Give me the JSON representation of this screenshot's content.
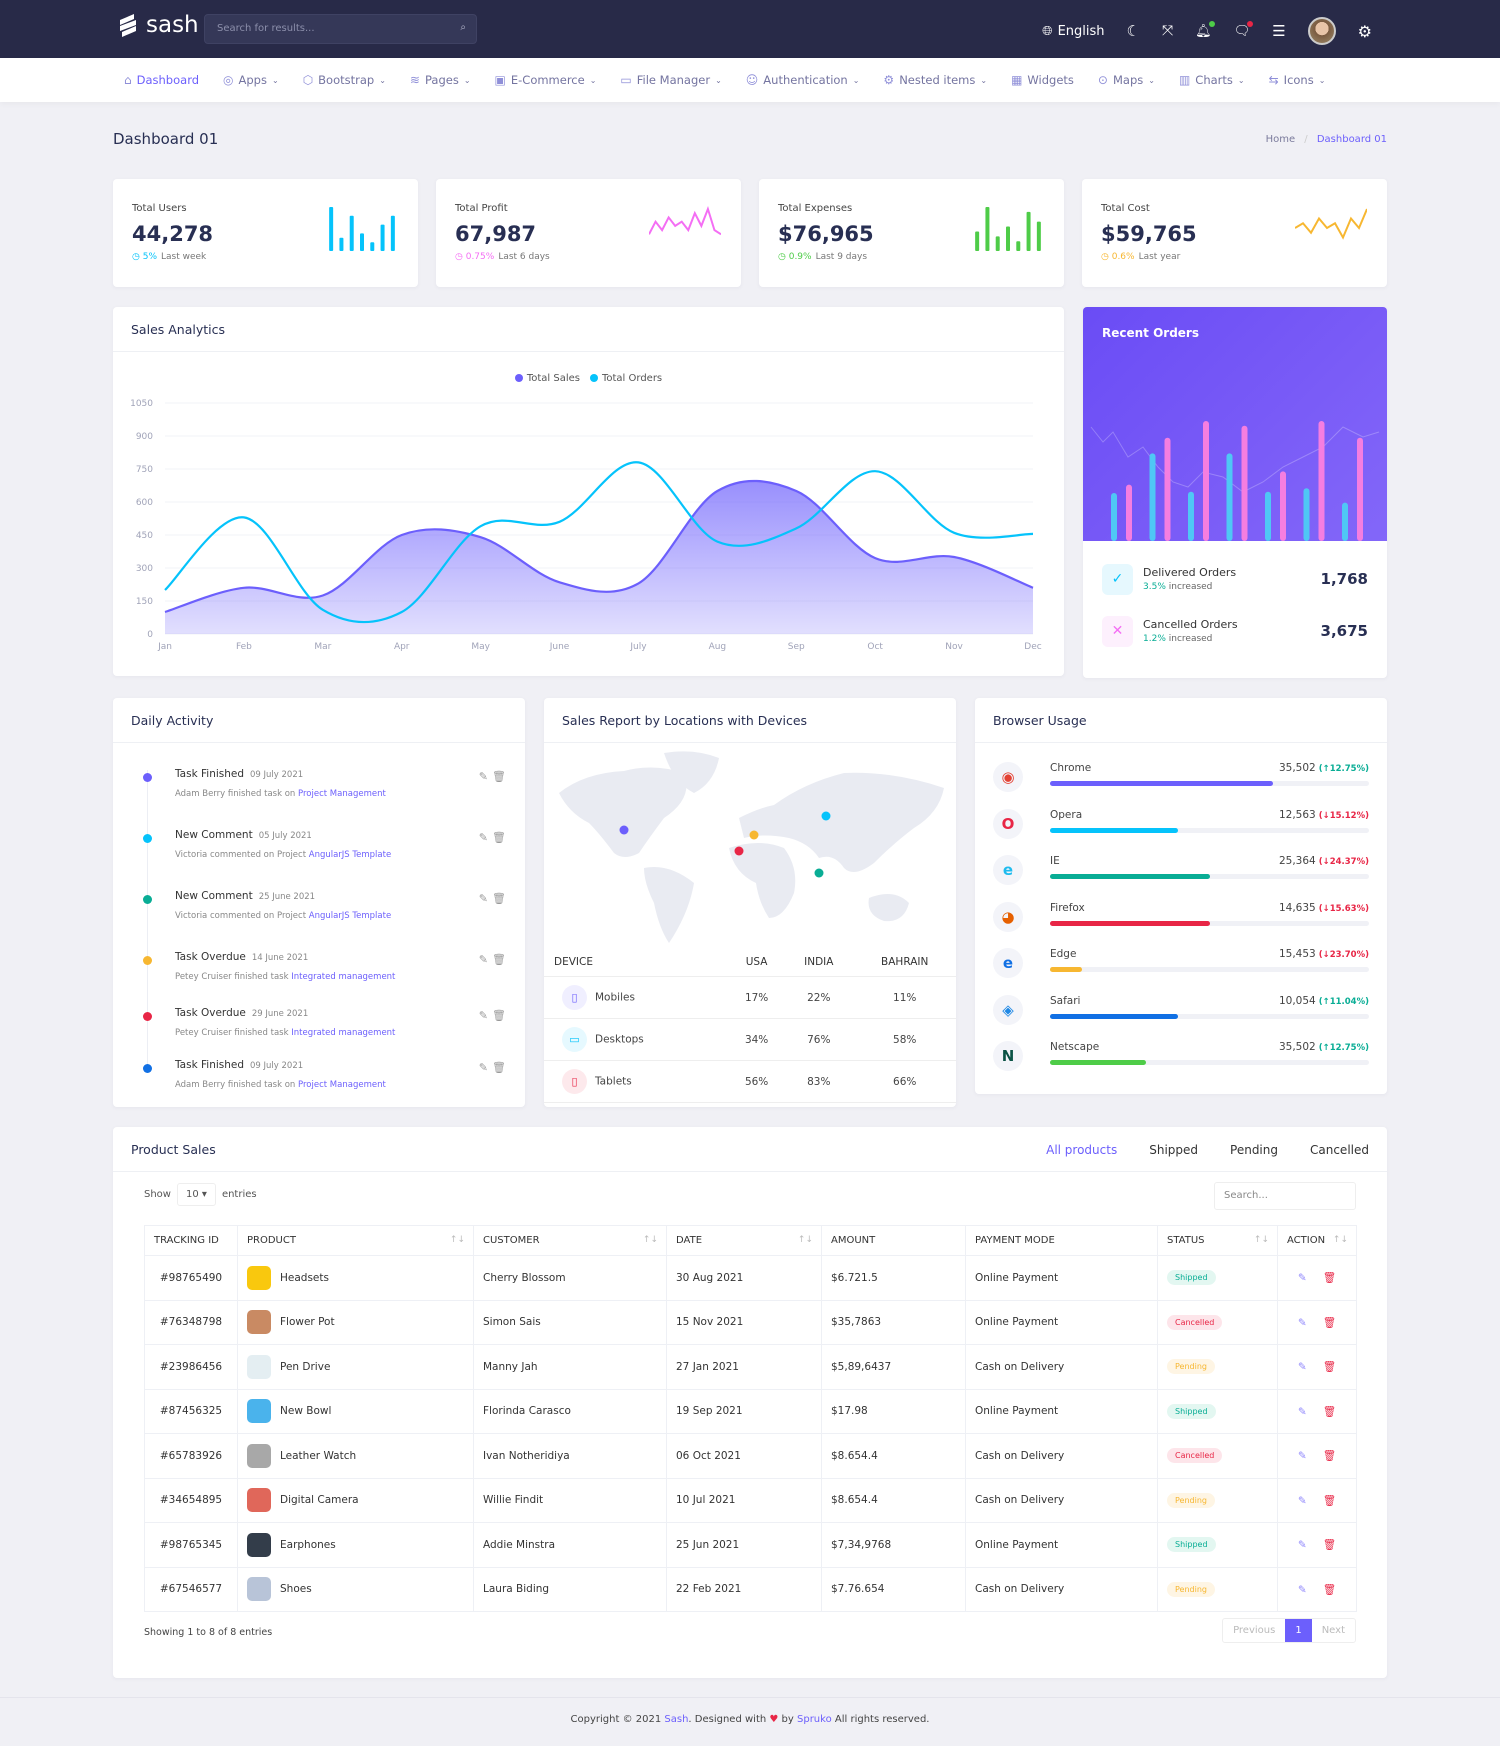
{
  "colors": {
    "primary": "#6c5ffc",
    "cyan": "#05c3fb",
    "green": "#09ad95",
    "orange": "#f7b731",
    "red": "#e82646",
    "blue": "#1170e4",
    "lime": "#4ecc48",
    "pink": "#f46ef4",
    "header": "#282a48"
  },
  "header": {
    "brand": "sash",
    "search_placeholder": "Search for results...",
    "language": "English"
  },
  "nav": [
    {
      "label": "Dashboard",
      "icon": "home-icon",
      "active": true,
      "dropdown": false
    },
    {
      "label": "Apps",
      "icon": "apps-icon",
      "dropdown": true
    },
    {
      "label": "Bootstrap",
      "icon": "package-icon",
      "dropdown": true
    },
    {
      "label": "Pages",
      "icon": "layers-icon",
      "dropdown": true
    },
    {
      "label": "E-Commerce",
      "icon": "shopping-bag-icon",
      "dropdown": true
    },
    {
      "label": "File Manager",
      "icon": "folder-icon",
      "dropdown": true
    },
    {
      "label": "Authentication",
      "icon": "users-icon",
      "dropdown": true
    },
    {
      "label": "Nested items",
      "icon": "settings-icon",
      "dropdown": true
    },
    {
      "label": "Widgets",
      "icon": "grid-icon",
      "dropdown": false
    },
    {
      "label": "Maps",
      "icon": "map-pin-icon",
      "dropdown": true
    },
    {
      "label": "Charts",
      "icon": "bar-chart-icon",
      "dropdown": true
    },
    {
      "label": "Icons",
      "icon": "shuffle-icon",
      "dropdown": true
    }
  ],
  "page": {
    "title": "Dashboard 01",
    "breadcrumb": [
      "Home",
      "Dashboard 01"
    ]
  },
  "stats": [
    {
      "label": "Total Users",
      "value": "44,278",
      "change": "5%",
      "period": "Last week",
      "color": "#05c3fb",
      "chart": "bar",
      "spark": [
        10,
        3,
        8,
        4,
        2,
        6,
        8
      ]
    },
    {
      "label": "Total Profit",
      "value": "67,987",
      "change": "0.75%",
      "period": "Last 6 days",
      "color": "#f46ef4",
      "chart": "line",
      "spark": [
        3,
        6,
        4,
        7,
        5,
        6,
        4,
        8,
        5,
        9,
        4,
        3
      ]
    },
    {
      "label": "Total Expenses",
      "value": "$76,965",
      "change": "0.9%",
      "period": "Last 9 days",
      "color": "#4ecc48",
      "chart": "bar",
      "spark": [
        4,
        9,
        3,
        5,
        2,
        8,
        6
      ]
    },
    {
      "label": "Total Cost",
      "value": "$59,765",
      "change": "0.6%",
      "period": "Last year",
      "color": "#f7b731",
      "chart": "line",
      "spark": [
        4,
        5,
        3,
        6,
        4,
        5,
        2,
        6,
        4,
        8
      ]
    }
  ],
  "sales_analytics": {
    "title": "Sales Analytics"
  },
  "chart_data": {
    "type": "area",
    "categories": [
      "Jan",
      "Feb",
      "Mar",
      "Apr",
      "May",
      "June",
      "July",
      "Aug",
      "Sep",
      "Oct",
      "Nov",
      "Dec"
    ],
    "yticks": [
      0,
      150,
      300,
      450,
      600,
      750,
      900,
      1050
    ],
    "ylim": [
      0,
      1050
    ],
    "legend_position": "top-center",
    "series": [
      {
        "name": "Total Sales",
        "color": "#6c5ffc",
        "values": [
          100,
          210,
          175,
          450,
          440,
          235,
          230,
          650,
          650,
          345,
          350,
          210
        ]
      },
      {
        "name": "Total Orders",
        "color": "#05c3fb",
        "values": [
          200,
          530,
          110,
          100,
          490,
          510,
          780,
          420,
          480,
          740,
          460,
          455
        ]
      }
    ]
  },
  "recent_orders": {
    "title": "Recent Orders",
    "bars": [
      [
        40,
        47
      ],
      [
        73,
        86
      ],
      [
        41,
        100
      ],
      [
        73,
        96
      ],
      [
        41,
        58
      ],
      [
        44,
        100
      ],
      [
        32,
        86
      ]
    ],
    "items": [
      {
        "label": "Delivered Orders",
        "change": "3.5%",
        "suffix": "increased",
        "value": "1,768",
        "icon": "check-icon"
      },
      {
        "label": "Cancelled Orders",
        "change": "1.2%",
        "suffix": "increased",
        "value": "3,675",
        "icon": "close-icon"
      }
    ]
  },
  "daily_activity": {
    "title": "Daily Activity",
    "items": [
      {
        "title": "Task Finished",
        "date": "09 July 2021",
        "text": "Adam Berry finished task on",
        "link": "Project Management",
        "color": "#6c5ffc"
      },
      {
        "title": "New Comment",
        "date": "05 July 2021",
        "text": "Victoria commented on Project",
        "link": "AngularJS Template",
        "color": "#05c3fb"
      },
      {
        "title": "New Comment",
        "date": "25 June 2021",
        "text": "Victoria commented on Project",
        "link": "AngularJS Template",
        "color": "#09ad95"
      },
      {
        "title": "Task Overdue",
        "date": "14 June 2021",
        "text": "Petey Cruiser finished task",
        "link": "Integrated management",
        "color": "#f7b731"
      },
      {
        "title": "Task Overdue",
        "date": "29 June 2021",
        "text": "Petey Cruiser finished task",
        "link": "Integrated management",
        "color": "#e82646"
      },
      {
        "title": "Task Finished",
        "date": "09 July 2021",
        "text": "Adam Berry finished task on",
        "link": "Project Management",
        "color": "#1170e4"
      }
    ]
  },
  "sales_report": {
    "title": "Sales Report by Locations with Devices",
    "columns": [
      "DEVICE",
      "USA",
      "INDIA",
      "BAHRAIN"
    ],
    "rows": [
      {
        "device": "Mobiles",
        "icon": "smartphone-icon",
        "color": "#6c5ffc",
        "values": [
          "17%",
          "22%",
          "11%"
        ]
      },
      {
        "device": "Desktops",
        "icon": "monitor-icon",
        "color": "#05c3fb",
        "values": [
          "34%",
          "76%",
          "58%"
        ]
      },
      {
        "device": "Tablets",
        "icon": "tablet-icon",
        "color": "#e82646",
        "values": [
          "56%",
          "83%",
          "66%"
        ]
      }
    ],
    "markers": [
      "#6c5ffc",
      "#f7b731",
      "#e82646",
      "#05c3fb",
      "#09ad95"
    ]
  },
  "browser_usage": {
    "title": "Browser Usage",
    "items": [
      {
        "name": "Chrome",
        "value": "35,502",
        "change": "12.75%",
        "up": true,
        "progress": 0.7,
        "color": "#6c5ffc",
        "icon": "chrome-icon"
      },
      {
        "name": "Opera",
        "value": "12,563",
        "change": "15.12%",
        "up": false,
        "progress": 0.4,
        "color": "#05c3fb",
        "icon": "opera-icon"
      },
      {
        "name": "IE",
        "value": "25,364",
        "change": "24.37%",
        "up": false,
        "progress": 0.5,
        "color": "#09ad95",
        "icon": "ie-icon"
      },
      {
        "name": "Firefox",
        "value": "14,635",
        "change": "15.63%",
        "up": false,
        "progress": 0.5,
        "color": "#e82646",
        "icon": "firefox-icon"
      },
      {
        "name": "Edge",
        "value": "15,453",
        "change": "23.70%",
        "up": false,
        "progress": 0.1,
        "color": "#f7b731",
        "icon": "edge-icon"
      },
      {
        "name": "Safari",
        "value": "10,054",
        "change": "11.04%",
        "up": true,
        "progress": 0.4,
        "color": "#1170e4",
        "icon": "safari-icon"
      },
      {
        "name": "Netscape",
        "value": "35,502",
        "change": "12.75%",
        "up": true,
        "progress": 0.3,
        "color": "#4ecc48",
        "icon": "netscape-icon"
      }
    ]
  },
  "product_sales": {
    "title": "Product Sales",
    "tabs": [
      "All products",
      "Shipped",
      "Pending",
      "Cancelled"
    ],
    "show_label": "Show",
    "entries_value": "10",
    "entries_label": "entries",
    "search_placeholder": "Search...",
    "columns": [
      "TRACKING ID",
      "PRODUCT",
      "CUSTOMER",
      "DATE",
      "AMOUNT",
      "PAYMENT MODE",
      "STATUS",
      "ACTION"
    ],
    "rows": [
      {
        "id": "#98765490",
        "product": "Headsets",
        "customer": "Cherry Blossom",
        "date": "30 Aug 2021",
        "amount": "$6.721.5",
        "mode": "Online Payment",
        "status": "Shipped"
      },
      {
        "id": "#76348798",
        "product": "Flower Pot",
        "customer": "Simon Sais",
        "date": "15 Nov 2021",
        "amount": "$35,7863",
        "mode": "Online Payment",
        "status": "Cancelled"
      },
      {
        "id": "#23986456",
        "product": "Pen Drive",
        "customer": "Manny Jah",
        "date": "27 Jan 2021",
        "amount": "$5,89,6437",
        "mode": "Cash on Delivery",
        "status": "Pending"
      },
      {
        "id": "#87456325",
        "product": "New Bowl",
        "customer": "Florinda Carasco",
        "date": "19 Sep 2021",
        "amount": "$17.98",
        "mode": "Online Payment",
        "status": "Shipped"
      },
      {
        "id": "#65783926",
        "product": "Leather Watch",
        "customer": "Ivan Notheridiya",
        "date": "06 Oct 2021",
        "amount": "$8.654.4",
        "mode": "Cash on Delivery",
        "status": "Cancelled"
      },
      {
        "id": "#34654895",
        "product": "Digital Camera",
        "customer": "Willie Findit",
        "date": "10 Jul 2021",
        "amount": "$8.654.4",
        "mode": "Cash on Delivery",
        "status": "Pending"
      },
      {
        "id": "#98765345",
        "product": "Earphones",
        "customer": "Addie Minstra",
        "date": "25 Jun 2021",
        "amount": "$7,34,9768",
        "mode": "Online Payment",
        "status": "Shipped"
      },
      {
        "id": "#67546577",
        "product": "Shoes",
        "customer": "Laura Biding",
        "date": "22 Feb 2021",
        "amount": "$7.76.654",
        "mode": "Cash on Delivery",
        "status": "Pending"
      }
    ],
    "info": "Showing 1 to 8 of 8 entries",
    "pager": {
      "prev": "Previous",
      "page": "1",
      "next": "Next"
    }
  },
  "footer": {
    "pre": "Copyright © 2021",
    "brand": "Sash",
    "mid": ". Designed with",
    "by": "by",
    "company": "Spruko",
    "post": "All rights reserved."
  }
}
